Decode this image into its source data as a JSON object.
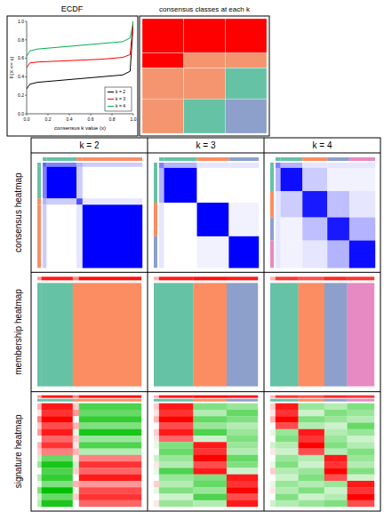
{
  "layout": {
    "row_titles": [
      "consensus heatmap",
      "membership heatmap",
      "signature heatmap"
    ]
  },
  "chart_data": [
    {
      "type": "line",
      "title": "ECDF",
      "x_label": "consensus k value (x)",
      "y_label": "F(X <= x)",
      "xlim": [
        0,
        1
      ],
      "ylim": [
        0,
        1
      ],
      "xticks": [
        {
          "value": 0,
          "label": "0.0"
        },
        {
          "value": 0.2,
          "label": "0.2"
        },
        {
          "value": 0.4,
          "label": "0.4"
        },
        {
          "value": 0.6,
          "label": "0.6"
        },
        {
          "value": 0.8,
          "label": "0.8"
        },
        {
          "value": 1,
          "label": "1.0"
        }
      ],
      "yticks": [
        {
          "value": 0,
          "label": "0.0"
        },
        {
          "value": 0.2,
          "label": "0.2"
        },
        {
          "value": 0.4,
          "label": "0.4"
        },
        {
          "value": 0.6,
          "label": "0.6"
        },
        {
          "value": 0.8,
          "label": "0.8"
        },
        {
          "value": 1,
          "label": "1.0"
        }
      ],
      "legend": "bottomright",
      "series": [
        {
          "name": "k = 2",
          "color": "#000000",
          "x": [
            0,
            0.03,
            0.1,
            0.3,
            0.5,
            0.7,
            0.9,
            0.97,
            1
          ],
          "values": [
            0.27,
            0.32,
            0.34,
            0.36,
            0.38,
            0.4,
            0.42,
            0.46,
            1
          ]
        },
        {
          "name": "k = 3",
          "color": "#FF0000",
          "x": [
            0,
            0.03,
            0.1,
            0.3,
            0.5,
            0.7,
            0.9,
            0.97,
            1
          ],
          "values": [
            0.5,
            0.55,
            0.56,
            0.57,
            0.58,
            0.59,
            0.61,
            0.64,
            1
          ]
        },
        {
          "name": "k = 4",
          "color": "#00B050",
          "x": [
            0,
            0.03,
            0.1,
            0.3,
            0.5,
            0.7,
            0.9,
            0.97,
            1
          ],
          "values": [
            0.62,
            0.68,
            0.7,
            0.72,
            0.74,
            0.76,
            0.78,
            0.82,
            1
          ]
        }
      ]
    },
    {
      "type": "heatmap",
      "title": "consensus classes at each k",
      "colors": [
        "#FF0000",
        "#F4956F",
        "#66C2A5",
        "#8DA0CB"
      ],
      "rows": [
        {
          "size": 30,
          "classes": [
            1,
            1,
            1
          ]
        },
        {
          "size": 13,
          "classes": [
            1,
            2,
            2
          ]
        },
        {
          "size": 27,
          "classes": [
            2,
            2,
            3
          ]
        },
        {
          "size": 30,
          "classes": [
            2,
            3,
            4
          ]
        }
      ]
    },
    {
      "type": "heatmap",
      "title": "k = 2",
      "colors": [
        "#66C2A5",
        "#FC8D62"
      ],
      "zlim": [
        -1,
        1
      ],
      "segments": [
        4,
        30,
        6,
        60
      ],
      "consensus": [
        [
          0.6,
          0.5,
          0.3,
          0.2
        ],
        [
          0.5,
          1,
          0.2,
          0
        ],
        [
          0.3,
          0.2,
          0.7,
          0.1
        ],
        [
          0.2,
          0,
          0.1,
          1
        ]
      ],
      "membership": [
        1,
        1,
        2,
        2
      ],
      "silhouette": [
        0.4,
        0.9,
        0.5,
        0.95
      ],
      "signature": [
        [
          0.3,
          0.9,
          0.2,
          -0.7
        ],
        [
          0.1,
          0.8,
          0.4,
          -0.6
        ],
        [
          0.5,
          1,
          0,
          -0.8
        ],
        [
          0.2,
          0.7,
          0.3,
          -0.5
        ],
        [
          0.4,
          0.9,
          -0.1,
          -0.9
        ],
        [
          0,
          0.6,
          0.2,
          -0.4
        ],
        [
          0.3,
          0.8,
          0.1,
          -0.7
        ],
        [
          0.2,
          0.5,
          0.3,
          -0.3
        ],
        [
          -0.2,
          -0.6,
          0.1,
          0.5
        ],
        [
          -0.4,
          -0.9,
          -0.2,
          0.8
        ],
        [
          0,
          -0.7,
          0.2,
          0.6
        ],
        [
          -0.3,
          -0.8,
          0,
          0.9
        ],
        [
          -0.1,
          -0.5,
          0.3,
          0.4
        ],
        [
          -0.5,
          -1,
          -0.1,
          0.7
        ],
        [
          -0.2,
          -0.6,
          0.2,
          0.8
        ],
        [
          -0.3,
          -0.9,
          0,
          0.6
        ]
      ]
    },
    {
      "type": "heatmap",
      "title": "k = 3",
      "colors": [
        "#66C2A5",
        "#FC8D62",
        "#8DA0CB"
      ],
      "zlim": [
        -1,
        1
      ],
      "segments": [
        5,
        33,
        32,
        30
      ],
      "consensus": [
        [
          0.5,
          0.3,
          0.1,
          0.1
        ],
        [
          0.3,
          1,
          0,
          0
        ],
        [
          0.1,
          0,
          1,
          0.05
        ],
        [
          0.1,
          0,
          0.05,
          1
        ]
      ],
      "membership": [
        1,
        1,
        2,
        3
      ],
      "silhouette": [
        0.3,
        0.9,
        0.95,
        0.9
      ],
      "signature": [
        [
          0.2,
          0.9,
          -0.5,
          -0.4
        ],
        [
          0.1,
          0.8,
          -0.3,
          -0.6
        ],
        [
          0.3,
          1,
          -0.6,
          -0.5
        ],
        [
          0,
          0.7,
          -0.4,
          -0.3
        ],
        [
          0.2,
          0.9,
          -0.7,
          -0.4
        ],
        [
          0.1,
          0.6,
          -0.2,
          -0.5
        ],
        [
          -0.1,
          -0.5,
          0.9,
          -0.4
        ],
        [
          0,
          -0.6,
          0.8,
          -0.3
        ],
        [
          -0.2,
          -0.4,
          1,
          -0.6
        ],
        [
          0.1,
          -0.3,
          0.7,
          -0.5
        ],
        [
          -0.1,
          -0.7,
          0.9,
          -0.2
        ],
        [
          0,
          -0.4,
          -0.5,
          0.9
        ],
        [
          0.2,
          -0.3,
          -0.6,
          0.8
        ],
        [
          -0.1,
          -0.5,
          -0.4,
          1
        ],
        [
          0,
          -0.2,
          -0.7,
          0.7
        ],
        [
          0.1,
          -0.4,
          -0.3,
          0.9
        ]
      ]
    },
    {
      "type": "heatmap",
      "title": "k = 4",
      "colors": [
        "#66C2A5",
        "#FC8D62",
        "#8DA0CB",
        "#E78AC3"
      ],
      "zlim": [
        -1,
        1
      ],
      "segments": [
        5,
        22,
        25,
        22,
        26
      ],
      "consensus": [
        [
          0.5,
          0.3,
          0.1,
          0.1,
          0.1
        ],
        [
          0.3,
          0.95,
          0.2,
          0.05,
          0.05
        ],
        [
          0.1,
          0.2,
          0.9,
          0.25,
          0.1
        ],
        [
          0.1,
          0.05,
          0.25,
          0.9,
          0.3
        ],
        [
          0.1,
          0.05,
          0.1,
          0.3,
          0.95
        ]
      ],
      "membership": [
        1,
        1,
        2,
        3,
        4
      ],
      "silhouette": [
        0.3,
        0.8,
        0.7,
        0.85,
        0.8
      ],
      "signature": [
        [
          0.2,
          0.9,
          -0.4,
          -0.3,
          -0.5
        ],
        [
          0.1,
          0.8,
          -0.2,
          -0.5,
          -0.4
        ],
        [
          0.3,
          1,
          -0.5,
          -0.4,
          -0.3
        ],
        [
          0,
          0.7,
          -0.3,
          -0.2,
          -0.6
        ],
        [
          -0.1,
          -0.4,
          0.9,
          -0.3,
          -0.4
        ],
        [
          0,
          -0.5,
          0.8,
          -0.4,
          -0.2
        ],
        [
          -0.2,
          -0.3,
          1,
          -0.5,
          -0.3
        ],
        [
          0.1,
          -0.2,
          0.7,
          -0.3,
          -0.5
        ],
        [
          0,
          -0.4,
          -0.3,
          0.9,
          -0.4
        ],
        [
          -0.1,
          -0.5,
          -0.2,
          0.8,
          -0.3
        ],
        [
          0.2,
          -0.3,
          -0.4,
          1,
          -0.5
        ],
        [
          0,
          -0.2,
          -0.5,
          0.7,
          -0.2
        ],
        [
          -0.1,
          -0.4,
          -0.3,
          -0.4,
          0.9
        ],
        [
          0.1,
          -0.3,
          -0.5,
          -0.2,
          0.8
        ],
        [
          0,
          -0.5,
          -0.2,
          -0.3,
          1
        ],
        [
          -0.2,
          -0.3,
          -0.4,
          -0.5,
          0.7
        ]
      ]
    }
  ]
}
